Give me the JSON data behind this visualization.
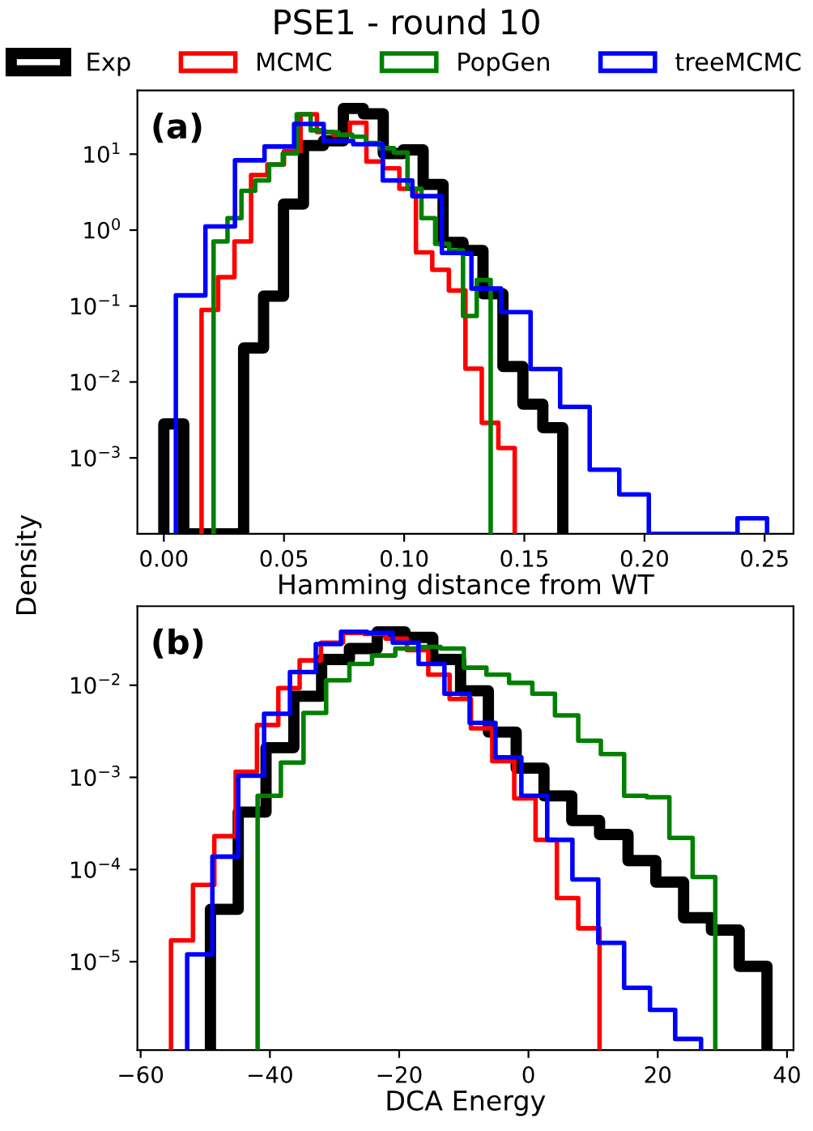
{
  "chart_data": [
    {
      "type": "histogram",
      "title": "PSE1 - round 10",
      "xlabel": "Hamming distance from WT",
      "ylabel": "Density",
      "legend": "top",
      "log": "y",
      "annotations": [
        "(a)"
      ],
      "xlim": [
        -0.011,
        0.262
      ],
      "ylim": [
        0.0001,
        69
      ],
      "xticks": [
        {
          "value": 0,
          "label": "0.00"
        },
        {
          "value": 0.05,
          "label": "0.05"
        },
        {
          "value": 0.1,
          "label": "0.10"
        },
        {
          "value": 0.15,
          "label": "0.15"
        },
        {
          "value": 0.2,
          "label": "0.20"
        },
        {
          "value": 0.25,
          "label": "0.25"
        }
      ],
      "yticks": [
        {
          "value": 0.001,
          "label": "10$^{−3}$"
        },
        {
          "value": 0.01,
          "label": "10$^{−2}$"
        },
        {
          "value": 0.1,
          "label": "10$^{−1}$"
        },
        {
          "value": 1,
          "label": "10$^{0}$"
        },
        {
          "value": 10,
          "label": "10$^{1}$"
        }
      ],
      "bins": [
        0,
        0.0083,
        0.0166,
        0.0249,
        0.0332,
        0.0415,
        0.0498,
        0.0581,
        0.0664,
        0.0747,
        0.083,
        0.0913,
        0.0996,
        0.1079,
        0.1162,
        0.1245,
        0.1328,
        0.1411,
        0.1494,
        0.1577,
        0.166
      ],
      "series": [
        {
          "name": "Exp",
          "color": "#000000",
          "values": [
            0.0028,
            null,
            null,
            null,
            0.028,
            0.135,
            2.2,
            13,
            15,
            40,
            34,
            10.2,
            11.4,
            4,
            0.69,
            0.54,
            0.145,
            0.016,
            0.0051,
            0.0025
          ]
        }
      ]
    },
    {
      "type": "histogram",
      "log": "y",
      "tick_labels": false,
      "xlim": [
        -0.011,
        0.262
      ],
      "ylim": [
        0.0001,
        69
      ],
      "bins": [
        0.0157,
        0.0226,
        0.0294,
        0.0363,
        0.0431,
        0.05,
        0.0569,
        0.0637,
        0.0706,
        0.0774,
        0.0843,
        0.0912,
        0.098,
        0.1049,
        0.1117,
        0.1186,
        0.1255,
        0.1323,
        0.1392,
        0.146
      ],
      "series": [
        {
          "name": "MCMC",
          "color": "#ff0000",
          "values": [
            0.089,
            0.24,
            0.71,
            5.3,
            7.3,
            11,
            33.5,
            19.6,
            18,
            26,
            8,
            6.5,
            3.5,
            0.51,
            0.3,
            0.16,
            0.015,
            0.0029,
            0.00135
          ]
        }
      ]
    },
    {
      "type": "histogram",
      "log": "y",
      "tick_labels": false,
      "xlim": [
        -0.011,
        0.262
      ],
      "ylim": [
        0.0001,
        69
      ],
      "bins": [
        0.0207,
        0.0265,
        0.0323,
        0.038,
        0.0438,
        0.0495,
        0.0553,
        0.0611,
        0.0668,
        0.0726,
        0.0784,
        0.0841,
        0.0899,
        0.0957,
        0.1014,
        0.1072,
        0.1129,
        0.1187,
        0.1245,
        0.1302,
        0.136
      ],
      "series": [
        {
          "name": "PopGen",
          "color": "#008000",
          "values": [
            0.71,
            1.44,
            3.3,
            4.5,
            7.3,
            10.2,
            33.5,
            20.6,
            19.6,
            18,
            17,
            14,
            12,
            10.5,
            3.5,
            1.44,
            0.66,
            0.54,
            0.074,
            0.22
          ]
        }
      ]
    },
    {
      "type": "histogram",
      "log": "y",
      "tick_labels": false,
      "xlim": [
        -0.011,
        0.262
      ],
      "ylim": [
        0.0001,
        69
      ],
      "bins": [
        0.005,
        0.0173,
        0.0296,
        0.0419,
        0.0542,
        0.0665,
        0.0788,
        0.0911,
        0.1034,
        0.1157,
        0.128,
        0.1403,
        0.1526,
        0.1649,
        0.1772,
        0.1895,
        0.2018,
        0.2141,
        0.2264,
        0.2387,
        0.251
      ],
      "series": [
        {
          "name": "treeMCMC",
          "color": "#0000ff",
          "values": [
            0.138,
            1.12,
            8.3,
            12.6,
            25,
            14.9,
            13.5,
            4.5,
            2.8,
            0.5,
            0.17,
            0.083,
            0.0148,
            0.0047,
            0.0007,
            0.00033,
            null,
            null,
            null,
            0.00016
          ]
        }
      ]
    },
    {
      "type": "histogram",
      "xlabel": "DCA Energy",
      "log": "y",
      "annotations": [
        "(b)"
      ],
      "xlim": [
        -60.5,
        41
      ],
      "ylim": [
        1.1e-06,
        0.072
      ],
      "xticks": [
        {
          "value": -60,
          "label": "−60"
        },
        {
          "value": -40,
          "label": "−40"
        },
        {
          "value": -20,
          "label": "−20"
        },
        0,
        20,
        40
      ],
      "yticks": [
        {
          "value": 1e-05,
          "label": "10$^{−5}$"
        },
        {
          "value": 0.0001,
          "label": "10$^{−4}$"
        },
        {
          "value": 0.001,
          "label": "10$^{−3}$"
        },
        {
          "value": 0.01,
          "label": "10$^{−2}$"
        }
      ],
      "bins": [
        -49.2,
        -44.9,
        -40.6,
        -36.3,
        -32.0,
        -27.7,
        -23.4,
        -19.1,
        -14.8,
        -10.5,
        -6.2,
        -1.9,
        2.4,
        6.7,
        11.0,
        15.4,
        19.7,
        24.0,
        28.3,
        32.6,
        36.9
      ],
      "series": [
        {
          "color": "#000000",
          "values": [
            3.7e-05,
            0.00042,
            0.0021,
            0.0076,
            0.019,
            0.025,
            0.038,
            0.033,
            0.019,
            0.0087,
            0.0031,
            0.00126,
            0.00063,
            0.00034,
            0.00024,
            0.000125,
            7.3e-05,
            3e-05,
            2.2e-05,
            8.9e-06
          ]
        }
      ]
    },
    {
      "type": "histogram",
      "log": "y",
      "tick_labels": false,
      "xlim": [
        -60.5,
        41
      ],
      "ylim": [
        1.1e-06,
        0.072
      ],
      "bins": [
        -55.3,
        -51.9,
        -48.6,
        -45.3,
        -42.0,
        -38.7,
        -35.4,
        -32.1,
        -28.7,
        -25.4,
        -22.1,
        -18.8,
        -15.5,
        -12.2,
        -8.9,
        -5.6,
        -2.2,
        1.1,
        4.4,
        7.7,
        11.0
      ],
      "series": [
        {
          "color": "#ff0000",
          "values": [
            1.7e-05,
            6.8e-05,
            0.00023,
            0.00115,
            0.0037,
            0.0093,
            0.0186,
            0.029,
            0.037,
            0.036,
            0.032,
            0.024,
            0.013,
            0.0071,
            0.0034,
            0.0015,
            0.00059,
            0.00021,
            4.9e-05,
            2.3e-05
          ]
        }
      ]
    },
    {
      "type": "histogram",
      "log": "y",
      "tick_labels": false,
      "xlim": [
        -60.5,
        41
      ],
      "ylim": [
        1.1e-06,
        0.072
      ],
      "bins": [
        -41.9,
        -38.3,
        -34.8,
        -31.3,
        -27.7,
        -24.2,
        -20.6,
        -17.1,
        -13.6,
        -10.0,
        -6.5,
        -3.0,
        0.6,
        4.1,
        7.7,
        11.2,
        14.8,
        18.3,
        21.8,
        25.4,
        28.9
      ],
      "series": [
        {
          "color": "#008000",
          "values": [
            0.00063,
            0.00145,
            0.005,
            0.0113,
            0.017,
            0.021,
            0.025,
            0.026,
            0.025,
            0.0155,
            0.013,
            0.0106,
            0.0081,
            0.0047,
            0.0025,
            0.00179,
            0.00063,
            0.00061,
            0.00022,
            8.3e-05
          ]
        }
      ]
    },
    {
      "type": "histogram",
      "log": "y",
      "tick_labels": false,
      "xlim": [
        -60.5,
        41
      ],
      "ylim": [
        1.1e-06,
        0.072
      ],
      "bins": [
        -52.8,
        -48.9,
        -44.9,
        -40.9,
        -36.9,
        -32.9,
        -29.0,
        -25.0,
        -21.0,
        -17.0,
        -13.0,
        -9.1,
        -5.1,
        -1.1,
        2.9,
        6.8,
        10.8,
        14.8,
        18.8,
        22.7,
        26.7
      ],
      "series": [
        {
          "color": "#0000ff",
          "values": [
            1.2e-05,
            0.000138,
            0.00104,
            0.0049,
            0.0139,
            0.028,
            0.038,
            0.037,
            0.029,
            0.017,
            0.0081,
            0.0039,
            0.00165,
            0.00063,
            0.00021,
            7.8e-05,
            1.6e-05,
            5.2e-06,
            3e-06,
            1.45e-06
          ]
        }
      ]
    }
  ]
}
